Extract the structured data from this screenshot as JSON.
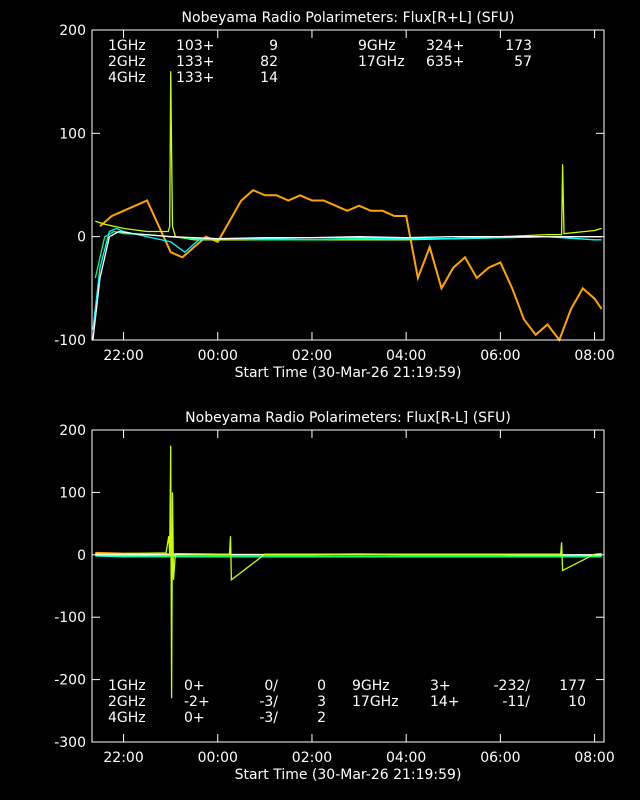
{
  "colors": {
    "1GHz": "#ffffff",
    "2GHz": "#00ffff",
    "4GHz": "#00ff7f",
    "9GHz": "#c8ff00",
    "17GHz": "#ffa500"
  },
  "chart_data": [
    {
      "type": "line",
      "title": "Nobeyama Radio Polarimeters: Flux[R+L] (SFU)",
      "xlabel": "Start Time (30-Mar-26 21:19:59)",
      "ylabel": "",
      "ylim": [
        -100,
        200
      ],
      "xlim": [
        21.33,
        32.2
      ],
      "yticks": [
        -100,
        0,
        100,
        200
      ],
      "xticks": [
        {
          "v": 22,
          "label": "22:00"
        },
        {
          "v": 24,
          "label": "00:00"
        },
        {
          "v": 26,
          "label": "02:00"
        },
        {
          "v": 28,
          "label": "04:00"
        },
        {
          "v": 30,
          "label": "06:00"
        },
        {
          "v": 32,
          "label": "08:00"
        }
      ],
      "legend": [
        {
          "name": "1GHz",
          "a": "103+",
          "b": "9"
        },
        {
          "name": "2GHz",
          "a": "133+",
          "b": "82"
        },
        {
          "name": "4GHz",
          "a": "133+",
          "b": "14"
        },
        {
          "name": "9GHz",
          "a": "324+",
          "b": "173"
        },
        {
          "name": "17GHz",
          "a": "635+",
          "b": "57"
        }
      ],
      "series": [
        {
          "name": "17GHz",
          "x": [
            21.5,
            21.75,
            22,
            22.25,
            22.5,
            22.75,
            23,
            23.25,
            23.5,
            23.75,
            24,
            24.25,
            24.5,
            24.75,
            25,
            25.25,
            25.5,
            25.75,
            26,
            26.25,
            26.5,
            26.75,
            27,
            27.25,
            27.5,
            27.75,
            28,
            28.25,
            28.5,
            28.75,
            29,
            29.25,
            29.5,
            29.75,
            30,
            30.25,
            30.5,
            30.75,
            31,
            31.25,
            31.5,
            31.75,
            32,
            32.15
          ],
          "y": [
            10,
            20,
            25,
            30,
            35,
            10,
            -15,
            -20,
            -10,
            0,
            -5,
            15,
            35,
            45,
            40,
            40,
            35,
            40,
            35,
            35,
            30,
            25,
            30,
            25,
            25,
            20,
            20,
            -40,
            -10,
            -50,
            -30,
            -20,
            -40,
            -30,
            -25,
            -50,
            -80,
            -95,
            -85,
            -100,
            -70,
            -50,
            -60,
            -70
          ]
        },
        {
          "name": "9GHz",
          "x": [
            21.4,
            21.6,
            22,
            22.5,
            22.95,
            22.98,
            23,
            23.02,
            23.04,
            23.1,
            23.5,
            24,
            25,
            26,
            27,
            28,
            29,
            30,
            31,
            31.3,
            31.32,
            31.35,
            32,
            32.15
          ],
          "y": [
            15,
            12,
            8,
            5,
            5,
            10,
            160,
            80,
            10,
            0,
            -3,
            -3,
            -3,
            -3,
            -3,
            -3,
            -2,
            0,
            2,
            2,
            70,
            3,
            6,
            8
          ]
        },
        {
          "name": "4GHz",
          "x": [
            21.4,
            21.6,
            21.8,
            22,
            22.5,
            23,
            23.5,
            24,
            25,
            26,
            27,
            28,
            29,
            30,
            31,
            32,
            32.15
          ],
          "y": [
            -40,
            0,
            5,
            3,
            2,
            0,
            -2,
            -2,
            -3,
            -3,
            -2,
            -2,
            -2,
            -1,
            0,
            0,
            0
          ]
        },
        {
          "name": "2GHz",
          "x": [
            21.35,
            21.5,
            21.7,
            21.85,
            22,
            22.5,
            23,
            23.3,
            23.6,
            24,
            25,
            26,
            27,
            28,
            29,
            30,
            31,
            32,
            32.15
          ],
          "y": [
            -90,
            -30,
            5,
            8,
            5,
            0,
            -5,
            -15,
            -3,
            -2,
            -2,
            -1,
            -1,
            -2,
            -2,
            -1,
            0,
            -3,
            -3
          ]
        },
        {
          "name": "1GHz",
          "x": [
            21.35,
            21.5,
            21.7,
            21.9,
            22.2,
            23,
            24,
            25,
            26,
            27,
            28,
            29,
            30,
            31,
            32,
            32.15
          ],
          "y": [
            -100,
            -40,
            0,
            5,
            3,
            0,
            -2,
            -1,
            -1,
            0,
            -1,
            0,
            0,
            0,
            0,
            0
          ]
        }
      ]
    },
    {
      "type": "line",
      "title": "Nobeyama Radio Polarimeters: Flux[R-L] (SFU)",
      "xlabel": "Start Time (30-Mar-26 21:19:59)",
      "ylabel": "",
      "ylim": [
        -300,
        200
      ],
      "xlim": [
        21.33,
        32.2
      ],
      "yticks": [
        -300,
        -200,
        -100,
        0,
        100,
        200
      ],
      "xticks": [
        {
          "v": 22,
          "label": "22:00"
        },
        {
          "v": 24,
          "label": "00:00"
        },
        {
          "v": 26,
          "label": "02:00"
        },
        {
          "v": 28,
          "label": "04:00"
        },
        {
          "v": 30,
          "label": "06:00"
        },
        {
          "v": 32,
          "label": "08:00"
        }
      ],
      "legend": [
        {
          "name": "1GHz",
          "a": "0+",
          "b": "0/",
          "c": "0"
        },
        {
          "name": "2GHz",
          "a": "-2+",
          "b": "-3/",
          "c": "3"
        },
        {
          "name": "4GHz",
          "a": "0+",
          "b": "-3/",
          "c": "2"
        },
        {
          "name": "9GHz",
          "a": "3+",
          "b": "-232/",
          "c": "177"
        },
        {
          "name": "17GHz",
          "a": "14+",
          "b": "-11/",
          "c": "10"
        }
      ],
      "series": [
        {
          "name": "17GHz",
          "x": [
            21.4,
            22,
            23,
            24,
            25,
            26,
            27,
            28,
            29,
            30,
            31,
            32,
            32.15
          ],
          "y": [
            3,
            2,
            1,
            0,
            0,
            0,
            1,
            0,
            0,
            0,
            -1,
            -2,
            -2
          ]
        },
        {
          "name": "2GHz",
          "x": [
            21.4,
            22,
            24,
            26,
            28,
            30,
            32,
            32.15
          ],
          "y": [
            -2,
            -3,
            -3,
            -3,
            -3,
            -3,
            -3,
            -3
          ]
        },
        {
          "name": "4GHz",
          "x": [
            21.4,
            22,
            24,
            26,
            28,
            30,
            32,
            32.15
          ],
          "y": [
            0,
            -2,
            -3,
            -3,
            -3,
            -3,
            -3,
            -3
          ]
        },
        {
          "name": "1GHz",
          "x": [
            21.4,
            32.15
          ],
          "y": [
            0,
            0
          ]
        },
        {
          "name": "9GHz",
          "x": [
            21.4,
            22,
            22.9,
            22.96,
            22.98,
            23,
            23.02,
            23.04,
            23.06,
            23.1,
            24,
            24.25,
            24.27,
            24.29,
            25,
            28,
            31,
            31.28,
            31.3,
            31.32,
            32,
            32.15
          ],
          "y": [
            2,
            2,
            3,
            30,
            0,
            175,
            -230,
            100,
            -40,
            2,
            1,
            1,
            30,
            -40,
            1,
            1,
            1,
            1,
            20,
            -25,
            1,
            2
          ]
        }
      ]
    }
  ]
}
